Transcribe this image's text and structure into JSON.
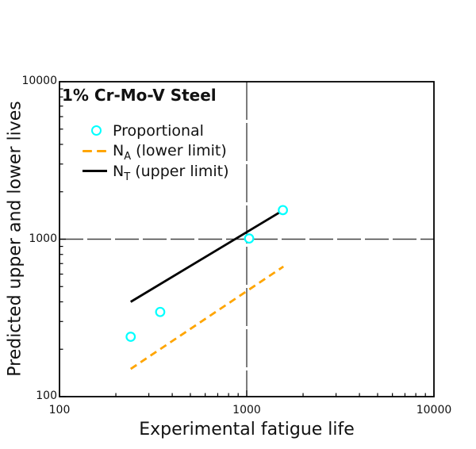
{
  "figure": {
    "title": "1% Cr-Mo-V Steel",
    "background": "#ffffff"
  },
  "chart_data": {
    "type": "scatter",
    "title": "1% Cr-Mo-V Steel",
    "xlabel": "Experimental fatigue life",
    "ylabel": "Predicted upper and lower lives",
    "xscale": "log",
    "yscale": "log",
    "xlim": [
      100,
      10000
    ],
    "ylim": [
      100,
      10000
    ],
    "x_ticks": [
      "100",
      "1000",
      "10000"
    ],
    "y_ticks": [
      "100",
      "1000",
      "10000"
    ],
    "grid": {
      "vertical_at_x": 1000,
      "horizontal_at_y": 1000
    },
    "legend_position": "upper-left",
    "series": [
      {
        "name": "Proportional",
        "kind": "scatter",
        "marker": "open-circle",
        "color": "#00ffff",
        "points": [
          [
            240,
            240
          ],
          [
            345,
            345
          ],
          [
            1030,
            1010
          ],
          [
            1560,
            1530
          ]
        ]
      },
      {
        "name": "N_A (lower limit)",
        "kind": "line",
        "dash": "dashed",
        "color": "#ffa500",
        "points": [
          [
            240,
            150
          ],
          [
            1570,
            670
          ]
        ]
      },
      {
        "name": "N_T (upper limit)",
        "kind": "line",
        "dash": "solid",
        "color": "#000000",
        "points": [
          [
            240,
            400
          ],
          [
            1600,
            1550
          ]
        ]
      }
    ]
  },
  "legend": {
    "items": [
      {
        "label": "Proportional",
        "swatch": "open-circle-marker",
        "color": "#00ffff"
      },
      {
        "label_main": "N",
        "label_sub": "A",
        "label_rest": " (lower limit)",
        "swatch": "dashed-line",
        "color": "#ffa500"
      },
      {
        "label_main": "N",
        "label_sub": "T",
        "label_rest": " (upper limit)",
        "swatch": "solid-line",
        "color": "#000000"
      }
    ]
  },
  "colors": {
    "marker_cyan": "#00ffff",
    "lower_limit_orange": "#ffa500",
    "upper_limit_black": "#000000",
    "axis": "#000000",
    "gridline": "#444444",
    "text": "#111111",
    "background": "#ffffff"
  }
}
